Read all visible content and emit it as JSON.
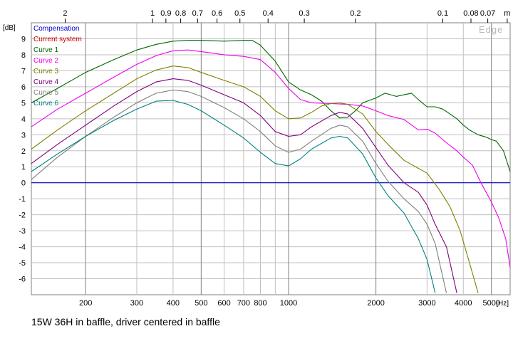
{
  "chart_data": {
    "type": "line",
    "title": "15W 36H in baffle, driver centered in baffle",
    "watermark": "Edge",
    "xlabel": "[Hz]",
    "ylabel": "[dB]",
    "xscale": "log",
    "xlim": [
      130,
      5800
    ],
    "ylim": [
      -7,
      10
    ],
    "grid": true,
    "legend_position": "top-left",
    "x_ticks": [
      {
        "value": 200,
        "label": "200",
        "major": true
      },
      {
        "value": 300,
        "label": "300",
        "major": false
      },
      {
        "value": 400,
        "label": "400",
        "major": false
      },
      {
        "value": 500,
        "label": "500",
        "major": true
      },
      {
        "value": 600,
        "label": "600",
        "major": false
      },
      {
        "value": 700,
        "label": "700",
        "major": false
      },
      {
        "value": 800,
        "label": "800",
        "major": false
      },
      {
        "value": 1000,
        "label": "1000",
        "major": true
      },
      {
        "value": 2000,
        "label": "2000",
        "major": true
      },
      {
        "value": 3000,
        "label": "3000",
        "major": false
      },
      {
        "value": 4000,
        "label": "4000",
        "major": false
      },
      {
        "value": 5000,
        "label": "5000",
        "major": true
      }
    ],
    "x_minor_ticks": [
      900
    ],
    "top_ticks": [
      {
        "value": 170,
        "label": "2"
      },
      {
        "value": 340,
        "label": "1"
      },
      {
        "value": 378,
        "label": "0.9"
      },
      {
        "value": 425,
        "label": "0.8"
      },
      {
        "value": 486,
        "label": "0.7"
      },
      {
        "value": 567,
        "label": "0.6"
      },
      {
        "value": 680,
        "label": "0.5"
      },
      {
        "value": 850,
        "label": "0.4"
      },
      {
        "value": 1133,
        "label": "0.3"
      },
      {
        "value": 1700,
        "label": "0.2"
      },
      {
        "value": 3400,
        "label": "0.1"
      },
      {
        "value": 4250,
        "label": "0.08"
      },
      {
        "value": 4857,
        "label": "0.07"
      },
      {
        "value": 5667,
        "label": "m"
      }
    ],
    "y_ticks": [
      {
        "value": 9,
        "label": "9"
      },
      {
        "value": 8,
        "label": "8"
      },
      {
        "value": 7,
        "label": "7"
      },
      {
        "value": 6,
        "label": "6"
      },
      {
        "value": 5,
        "label": "5"
      },
      {
        "value": 4,
        "label": "4"
      },
      {
        "value": 3,
        "label": "3"
      },
      {
        "value": 2,
        "label": "2"
      },
      {
        "value": 1,
        "label": "1"
      },
      {
        "value": 0,
        "label": "0"
      },
      {
        "value": -1,
        "label": "-1"
      },
      {
        "value": -2,
        "label": "-2"
      },
      {
        "value": -3,
        "label": "-3"
      },
      {
        "value": -4,
        "label": "-4"
      },
      {
        "value": -5,
        "label": "-5"
      },
      {
        "value": -6,
        "label": "-6"
      }
    ],
    "series": [
      {
        "name": "Compensation",
        "color": "#0000cc",
        "points": [
          [
            130,
            0
          ],
          [
            5800,
            0
          ]
        ]
      },
      {
        "name": "Current system",
        "color": "#cc0000",
        "points": []
      },
      {
        "name": "Curve 1",
        "color": "#006600",
        "points": [
          [
            130,
            5.0
          ],
          [
            160,
            5.9
          ],
          [
            200,
            6.9
          ],
          [
            250,
            7.7
          ],
          [
            300,
            8.3
          ],
          [
            350,
            8.65
          ],
          [
            400,
            8.85
          ],
          [
            450,
            8.9
          ],
          [
            500,
            8.9
          ],
          [
            600,
            8.85
          ],
          [
            700,
            8.9
          ],
          [
            750,
            8.9
          ],
          [
            800,
            8.6
          ],
          [
            900,
            7.6
          ],
          [
            1000,
            6.3
          ],
          [
            1100,
            5.8
          ],
          [
            1200,
            5.5
          ],
          [
            1300,
            5.1
          ],
          [
            1400,
            4.5
          ],
          [
            1500,
            4.05
          ],
          [
            1600,
            4.1
          ],
          [
            1700,
            4.5
          ],
          [
            1800,
            5.0
          ],
          [
            2000,
            5.3
          ],
          [
            2150,
            5.6
          ],
          [
            2350,
            5.4
          ],
          [
            2500,
            5.5
          ],
          [
            2650,
            5.6
          ],
          [
            2800,
            5.2
          ],
          [
            3000,
            4.75
          ],
          [
            3200,
            4.75
          ],
          [
            3400,
            4.6
          ],
          [
            3600,
            4.3
          ],
          [
            3800,
            4.0
          ],
          [
            4000,
            3.6
          ],
          [
            4200,
            3.3
          ],
          [
            4500,
            3.0
          ],
          [
            4800,
            2.85
          ],
          [
            5000,
            2.7
          ],
          [
            5200,
            2.6
          ],
          [
            5500,
            2.0
          ],
          [
            5800,
            0.7
          ]
        ]
      },
      {
        "name": "Curve 2",
        "color": "#ee00ee",
        "points": [
          [
            130,
            3.5
          ],
          [
            160,
            4.6
          ],
          [
            200,
            5.6
          ],
          [
            250,
            6.6
          ],
          [
            300,
            7.4
          ],
          [
            350,
            7.95
          ],
          [
            400,
            8.25
          ],
          [
            450,
            8.3
          ],
          [
            500,
            8.2
          ],
          [
            600,
            8.0
          ],
          [
            700,
            7.9
          ],
          [
            800,
            7.7
          ],
          [
            900,
            6.9
          ],
          [
            1000,
            5.9
          ],
          [
            1100,
            5.2
          ],
          [
            1200,
            5.0
          ],
          [
            1400,
            4.95
          ],
          [
            1600,
            4.9
          ],
          [
            1800,
            4.8
          ],
          [
            2000,
            4.5
          ],
          [
            2200,
            4.2
          ],
          [
            2500,
            3.95
          ],
          [
            2800,
            3.3
          ],
          [
            3000,
            3.35
          ],
          [
            3200,
            3.1
          ],
          [
            3500,
            2.5
          ],
          [
            3800,
            2.0
          ],
          [
            4000,
            1.6
          ],
          [
            4300,
            1.1
          ],
          [
            4600,
            0.0
          ],
          [
            5000,
            -1.2
          ],
          [
            5300,
            -2.2
          ],
          [
            5600,
            -3.5
          ],
          [
            5800,
            -5.3
          ]
        ]
      },
      {
        "name": "Curve 3",
        "color": "#808000",
        "points": [
          [
            130,
            2.1
          ],
          [
            160,
            3.3
          ],
          [
            200,
            4.5
          ],
          [
            250,
            5.6
          ],
          [
            300,
            6.5
          ],
          [
            350,
            7.05
          ],
          [
            400,
            7.3
          ],
          [
            450,
            7.2
          ],
          [
            500,
            6.9
          ],
          [
            600,
            6.4
          ],
          [
            700,
            6.0
          ],
          [
            800,
            5.4
          ],
          [
            900,
            4.5
          ],
          [
            1000,
            4.0
          ],
          [
            1100,
            4.05
          ],
          [
            1200,
            4.4
          ],
          [
            1300,
            4.8
          ],
          [
            1400,
            4.95
          ],
          [
            1500,
            5.0
          ],
          [
            1600,
            4.9
          ],
          [
            1800,
            4.3
          ],
          [
            2000,
            3.2
          ],
          [
            2200,
            2.4
          ],
          [
            2500,
            1.4
          ],
          [
            2800,
            0.9
          ],
          [
            3000,
            0.6
          ],
          [
            3300,
            -0.4
          ],
          [
            3600,
            -1.5
          ],
          [
            3900,
            -3.0
          ],
          [
            4200,
            -5.0
          ],
          [
            4500,
            -6.9
          ]
        ]
      },
      {
        "name": "Curve 4",
        "color": "#800080",
        "points": [
          [
            130,
            1.2
          ],
          [
            160,
            2.4
          ],
          [
            200,
            3.6
          ],
          [
            250,
            4.8
          ],
          [
            300,
            5.7
          ],
          [
            350,
            6.3
          ],
          [
            400,
            6.5
          ],
          [
            450,
            6.4
          ],
          [
            500,
            6.1
          ],
          [
            600,
            5.5
          ],
          [
            700,
            5.0
          ],
          [
            800,
            4.2
          ],
          [
            900,
            3.2
          ],
          [
            1000,
            2.9
          ],
          [
            1100,
            3.0
          ],
          [
            1200,
            3.5
          ],
          [
            1400,
            4.2
          ],
          [
            1500,
            4.4
          ],
          [
            1600,
            4.3
          ],
          [
            1800,
            3.4
          ],
          [
            2000,
            2.2
          ],
          [
            2200,
            1.1
          ],
          [
            2500,
            0.0
          ],
          [
            2800,
            -0.6
          ],
          [
            3000,
            -1.4
          ],
          [
            3200,
            -2.6
          ],
          [
            3500,
            -4.0
          ],
          [
            3800,
            -6.9
          ]
        ]
      },
      {
        "name": "Curve 5",
        "color": "#808080",
        "points": [
          [
            130,
            0.2
          ],
          [
            160,
            1.6
          ],
          [
            200,
            2.9
          ],
          [
            250,
            4.1
          ],
          [
            300,
            5.0
          ],
          [
            350,
            5.6
          ],
          [
            400,
            5.8
          ],
          [
            450,
            5.7
          ],
          [
            500,
            5.4
          ],
          [
            600,
            4.7
          ],
          [
            700,
            4.0
          ],
          [
            800,
            3.2
          ],
          [
            900,
            2.3
          ],
          [
            1000,
            1.9
          ],
          [
            1100,
            2.1
          ],
          [
            1200,
            2.6
          ],
          [
            1400,
            3.4
          ],
          [
            1500,
            3.6
          ],
          [
            1600,
            3.5
          ],
          [
            1800,
            2.6
          ],
          [
            2000,
            1.2
          ],
          [
            2200,
            0.1
          ],
          [
            2500,
            -1.0
          ],
          [
            2800,
            -1.8
          ],
          [
            3000,
            -2.6
          ],
          [
            3200,
            -3.8
          ],
          [
            3500,
            -6.9
          ]
        ]
      },
      {
        "name": "Curve 6",
        "color": "#008080",
        "points": [
          [
            130,
            0.7
          ],
          [
            160,
            1.8
          ],
          [
            200,
            2.9
          ],
          [
            250,
            3.9
          ],
          [
            300,
            4.6
          ],
          [
            350,
            5.1
          ],
          [
            400,
            5.15
          ],
          [
            450,
            4.9
          ],
          [
            500,
            4.5
          ],
          [
            600,
            3.6
          ],
          [
            700,
            2.8
          ],
          [
            800,
            1.9
          ],
          [
            900,
            1.2
          ],
          [
            1000,
            1.05
          ],
          [
            1100,
            1.5
          ],
          [
            1200,
            2.1
          ],
          [
            1400,
            2.8
          ],
          [
            1500,
            2.9
          ],
          [
            1600,
            2.8
          ],
          [
            1800,
            1.8
          ],
          [
            2000,
            0.3
          ],
          [
            2200,
            -0.8
          ],
          [
            2500,
            -1.9
          ],
          [
            2800,
            -3.5
          ],
          [
            3000,
            -4.8
          ],
          [
            3200,
            -6.9
          ]
        ]
      }
    ]
  }
}
